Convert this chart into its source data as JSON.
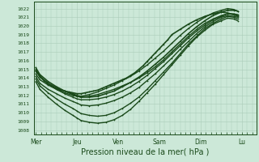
{
  "bg_color": "#cce8d8",
  "grid_color": "#aaccb8",
  "line_color": "#1a4a1a",
  "xlabel": "Pression niveau de la mer( hPa )",
  "xlabel_fontsize": 7,
  "ytick_labels": [
    1008,
    1009,
    1010,
    1011,
    1012,
    1013,
    1014,
    1015,
    1016,
    1017,
    1018,
    1019,
    1020,
    1021,
    1022
  ],
  "ylim": [
    1007.5,
    1022.8
  ],
  "xlim": [
    -0.05,
    5.35
  ],
  "xtick_labels": [
    "Mer",
    "Jeu",
    "Ven",
    "Sam",
    "Dim",
    "Lu"
  ],
  "xtick_positions": [
    0,
    1,
    2,
    3,
    4,
    5
  ],
  "series": [
    {
      "x": [
        0.0,
        0.1,
        0.2,
        0.3,
        0.4,
        0.5,
        0.6,
        0.7,
        0.8,
        0.9,
        1.0,
        1.1,
        1.2,
        1.3,
        1.4,
        1.5,
        1.6,
        1.7,
        1.8,
        1.9,
        2.0,
        2.1,
        2.2,
        2.3,
        2.4,
        2.5,
        2.6,
        2.7,
        2.8,
        2.9,
        3.0,
        3.1,
        3.2,
        3.3,
        3.5,
        3.7,
        3.9,
        4.1,
        4.3,
        4.5,
        4.65,
        4.8,
        4.9
      ],
      "y": [
        1014.8,
        1014.2,
        1013.7,
        1013.3,
        1013.0,
        1012.8,
        1012.6,
        1012.5,
        1012.4,
        1012.3,
        1012.2,
        1012.2,
        1012.3,
        1012.4,
        1012.5,
        1012.6,
        1012.8,
        1013.0,
        1013.2,
        1013.4,
        1013.6,
        1013.8,
        1014.0,
        1014.3,
        1014.6,
        1015.0,
        1015.4,
        1015.9,
        1016.4,
        1016.9,
        1017.4,
        1017.9,
        1018.4,
        1019.0,
        1019.6,
        1020.2,
        1020.7,
        1021.1,
        1021.4,
        1021.6,
        1021.5,
        1021.3,
        1021.2
      ],
      "lw": 1.2,
      "marker": "+"
    },
    {
      "x": [
        0.0,
        0.1,
        0.3,
        0.5,
        0.7,
        0.9,
        1.0,
        1.1,
        1.3,
        1.5,
        1.7,
        1.9,
        2.1,
        2.3,
        2.5,
        2.7,
        2.9,
        3.1,
        3.3,
        3.5,
        3.7,
        3.9,
        4.1,
        4.3,
        4.5,
        4.65,
        4.8,
        4.9
      ],
      "y": [
        1014.5,
        1013.8,
        1013.2,
        1012.7,
        1012.3,
        1012.0,
        1011.9,
        1011.8,
        1011.9,
        1012.1,
        1012.4,
        1012.7,
        1013.1,
        1013.5,
        1014.0,
        1014.6,
        1015.3,
        1016.1,
        1017.0,
        1017.9,
        1018.8,
        1019.6,
        1020.3,
        1020.8,
        1021.2,
        1021.4,
        1021.3,
        1021.1
      ],
      "lw": 1.0,
      "marker": "+"
    },
    {
      "x": [
        0.0,
        0.1,
        0.3,
        0.5,
        0.7,
        0.9,
        1.0,
        1.1,
        1.3,
        1.5,
        1.7,
        1.9,
        2.1,
        2.3,
        2.5,
        2.7,
        2.9,
        3.1,
        3.3,
        3.5,
        3.7,
        3.9,
        4.1,
        4.3,
        4.5,
        4.65,
        4.8,
        4.9
      ],
      "y": [
        1014.9,
        1014.1,
        1013.4,
        1012.9,
        1012.5,
        1012.2,
        1012.0,
        1011.9,
        1012.1,
        1012.4,
        1012.8,
        1013.2,
        1013.7,
        1014.2,
        1014.8,
        1015.5,
        1016.3,
        1017.1,
        1018.0,
        1018.9,
        1019.7,
        1020.4,
        1021.0,
        1021.5,
        1021.8,
        1022.0,
        1021.9,
        1021.7
      ],
      "lw": 1.0,
      "marker": "+"
    },
    {
      "x": [
        0.0,
        0.1,
        0.3,
        0.5,
        0.7,
        0.9,
        1.0,
        1.1,
        1.3,
        1.5,
        1.7,
        1.9,
        2.1,
        2.3,
        2.5,
        2.7,
        2.9,
        3.1,
        3.3,
        3.5,
        3.7,
        3.9,
        4.1,
        4.3,
        4.5,
        4.65,
        4.8,
        4.9
      ],
      "y": [
        1014.2,
        1013.4,
        1012.7,
        1012.2,
        1011.7,
        1011.3,
        1011.1,
        1010.9,
        1010.8,
        1010.9,
        1011.1,
        1011.4,
        1011.8,
        1012.3,
        1012.9,
        1013.7,
        1014.5,
        1015.4,
        1016.3,
        1017.3,
        1018.2,
        1019.1,
        1019.9,
        1020.5,
        1021.0,
        1021.2,
        1021.1,
        1021.0
      ],
      "lw": 1.0,
      "marker": "+"
    },
    {
      "x": [
        0.0,
        0.1,
        0.3,
        0.5,
        0.7,
        0.9,
        1.0,
        1.1,
        1.3,
        1.5,
        1.7,
        1.9,
        2.1,
        2.3,
        2.5,
        2.7,
        2.9,
        3.1,
        3.3,
        3.5,
        3.7,
        3.9,
        4.1,
        4.3,
        4.5,
        4.65,
        4.8,
        4.9
      ],
      "y": [
        1013.9,
        1013.1,
        1012.3,
        1011.6,
        1011.0,
        1010.5,
        1010.2,
        1009.9,
        1009.7,
        1009.6,
        1009.7,
        1010.0,
        1010.5,
        1011.1,
        1011.8,
        1012.7,
        1013.7,
        1014.7,
        1015.7,
        1016.8,
        1017.9,
        1018.8,
        1019.7,
        1020.3,
        1020.8,
        1021.1,
        1021.0,
        1020.8
      ],
      "lw": 1.0,
      "marker": "+"
    },
    {
      "x": [
        0.0,
        0.1,
        0.3,
        0.5,
        0.7,
        0.9,
        1.0,
        1.1,
        1.3,
        1.5,
        1.7,
        1.9,
        2.1,
        2.3,
        2.5,
        2.7,
        2.9,
        3.1,
        3.3,
        3.5,
        3.7,
        3.9,
        4.1,
        4.3,
        4.5,
        4.65,
        4.8,
        4.9
      ],
      "y": [
        1013.6,
        1012.7,
        1011.8,
        1011.0,
        1010.3,
        1009.7,
        1009.4,
        1009.1,
        1008.9,
        1008.8,
        1008.9,
        1009.2,
        1009.7,
        1010.4,
        1011.3,
        1012.3,
        1013.3,
        1014.4,
        1015.5,
        1016.6,
        1017.7,
        1018.7,
        1019.5,
        1020.2,
        1020.6,
        1020.9,
        1020.8,
        1020.6
      ],
      "lw": 1.0,
      "marker": "+"
    },
    {
      "x": [
        0.0,
        0.1,
        0.3,
        0.5,
        0.7,
        0.9,
        1.0,
        1.1,
        1.3,
        1.5,
        1.7,
        1.9,
        2.1,
        2.3,
        2.5,
        2.7,
        2.9,
        3.1,
        3.3,
        3.5,
        3.7,
        3.9,
        4.1,
        4.3,
        4.5,
        4.65,
        4.8,
        4.9
      ],
      "y": [
        1015.0,
        1014.2,
        1013.4,
        1012.7,
        1012.2,
        1011.8,
        1011.6,
        1011.5,
        1011.5,
        1011.6,
        1011.8,
        1012.1,
        1012.5,
        1013.0,
        1013.6,
        1014.3,
        1015.1,
        1015.9,
        1016.8,
        1017.7,
        1018.6,
        1019.4,
        1020.1,
        1020.7,
        1021.1,
        1021.4,
        1021.4,
        1021.3
      ],
      "lw": 1.0,
      "marker": "+"
    },
    {
      "x": [
        0.0,
        0.1,
        0.3,
        0.5,
        0.7,
        0.9,
        1.0,
        1.1,
        1.3,
        1.5,
        1.7,
        1.9,
        2.1,
        2.3,
        2.5,
        2.7,
        2.9,
        3.1,
        3.3,
        3.5,
        3.7,
        3.9,
        4.1,
        4.3,
        4.5,
        4.65,
        4.8,
        4.9
      ],
      "y": [
        1015.2,
        1014.4,
        1013.6,
        1013.0,
        1012.5,
        1012.1,
        1011.9,
        1011.8,
        1011.8,
        1011.9,
        1012.2,
        1012.5,
        1013.0,
        1013.5,
        1014.1,
        1014.8,
        1015.6,
        1016.4,
        1017.3,
        1018.2,
        1019.1,
        1019.9,
        1020.6,
        1021.2,
        1021.6,
        1021.8,
        1021.8,
        1021.7
      ],
      "lw": 1.2,
      "marker": "+"
    }
  ]
}
